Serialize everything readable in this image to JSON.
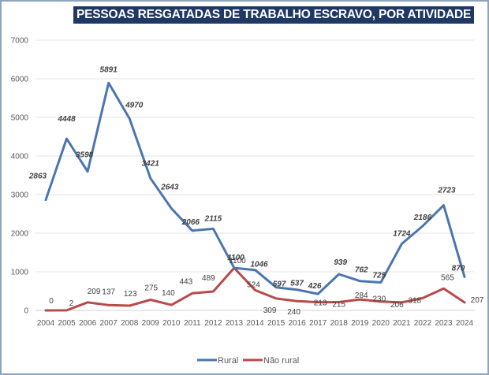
{
  "chart_data": {
    "type": "line",
    "title": "PESSOAS RESGATADAS DE TRABALHO ESCRAVO, POR ATIVIDADE",
    "xlabel": "",
    "ylabel": "",
    "ylim": [
      0,
      7000
    ],
    "yticks": [
      0,
      1000,
      2000,
      3000,
      4000,
      5000,
      6000,
      7000
    ],
    "grid": true,
    "legend_position": "bottom",
    "x": [
      "2004",
      "2005",
      "2006",
      "2007",
      "2008",
      "2009",
      "2010",
      "2011",
      "2012",
      "2013",
      "2014",
      "2015",
      "2016",
      "2017",
      "2018",
      "2019",
      "2020",
      "2021",
      "2022",
      "2023",
      "2024"
    ],
    "series": [
      {
        "name": "Rural",
        "color": "#4a76b0",
        "values": [
          2863,
          4448,
          3598,
          5891,
          4970,
          3421,
          2643,
          2066,
          2115,
          1100,
          1046,
          597,
          537,
          426,
          939,
          762,
          725,
          1724,
          2186,
          2723,
          870
        ]
      },
      {
        "name": "Não rural",
        "color": "#b84a4a",
        "values": [
          0,
          2,
          209,
          137,
          123,
          275,
          140,
          443,
          489,
          1100,
          524,
          309,
          240,
          213,
          215,
          284,
          230,
          206,
          318,
          565,
          207
        ]
      }
    ]
  }
}
